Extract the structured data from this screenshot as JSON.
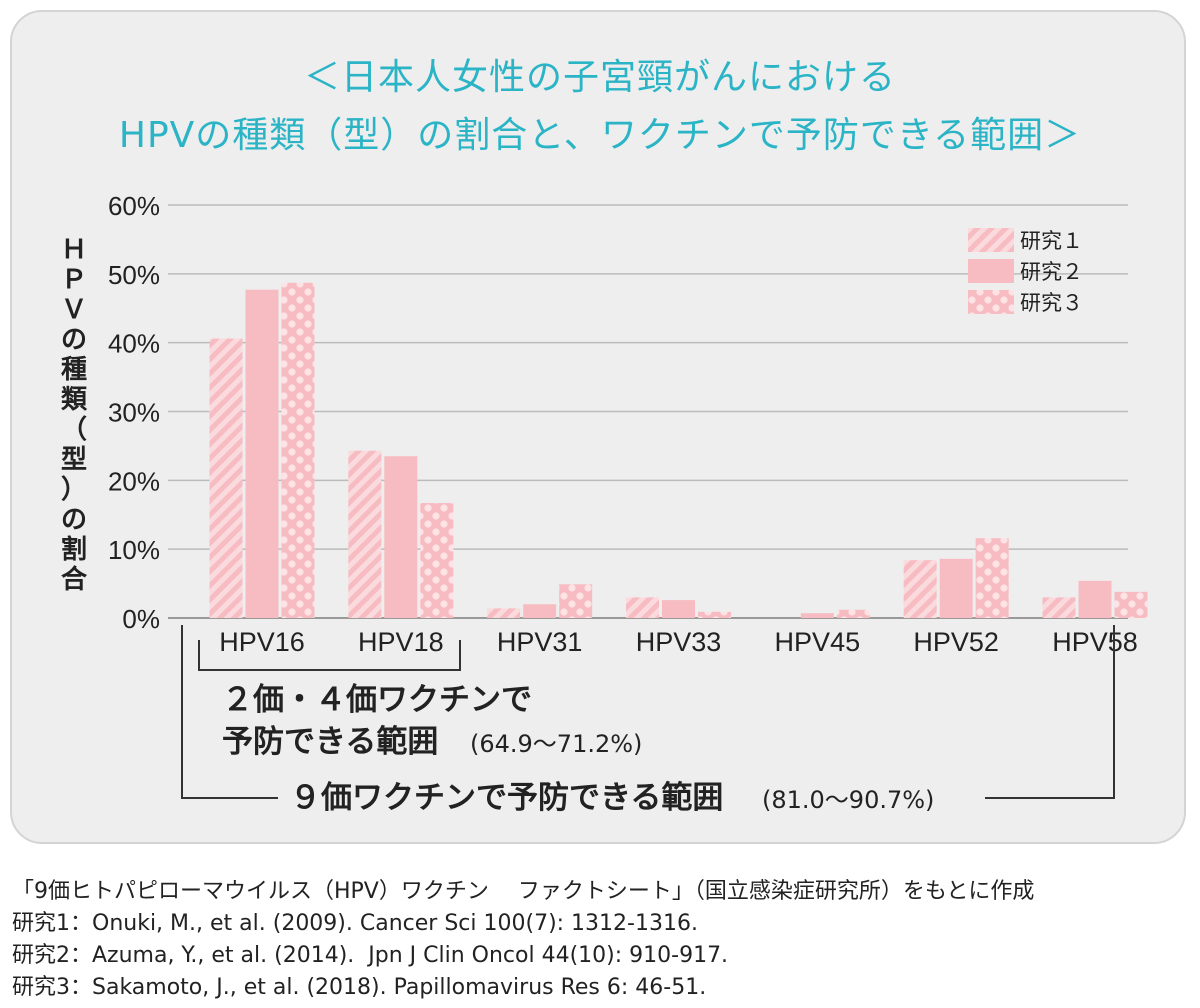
{
  "title_line1": "＜日本人女性の子宮頸がんにおける",
  "title_line2": "HPVの種類（型）の割合と、ワクチンで予防できる範囲＞",
  "colors": {
    "title": "#2ab4c6",
    "bar": "#f7bcc2",
    "bar_light": "#fbdadd",
    "panel": "#eeeeee"
  },
  "chart_data": {
    "type": "bar",
    "ylabel": "ＨＰＶの種類（型）の割合",
    "ylim": [
      0,
      60
    ],
    "y_ticks": [
      "0%",
      "10%",
      "20%",
      "30%",
      "40%",
      "50%",
      "60%"
    ],
    "y_tick_values": [
      0,
      10,
      20,
      30,
      40,
      50,
      60
    ],
    "categories": [
      "HPV16",
      "HPV18",
      "HPV31",
      "HPV33",
      "HPV45",
      "HPV52",
      "HPV58"
    ],
    "series": [
      {
        "name": "研究１",
        "pattern": "stripes",
        "values": [
          40.6,
          24.3,
          1.4,
          3.0,
          0.0,
          8.4,
          3.0
        ]
      },
      {
        "name": "研究２",
        "pattern": "solid",
        "values": [
          47.7,
          23.5,
          2.0,
          2.6,
          0.7,
          8.6,
          5.4
        ]
      },
      {
        "name": "研究３",
        "pattern": "dots",
        "values": [
          48.7,
          16.7,
          4.9,
          0.9,
          1.2,
          11.6,
          3.8
        ]
      }
    ],
    "legend_position": "top-right",
    "grid": true,
    "annotations": {
      "bracket1_line1": "２価・４価ワクチンで",
      "bracket1_line2": "予防できる範囲",
      "bracket1_range": "(64.9～71.2%)",
      "bracket2_label": "９価ワクチンで予防できる範囲",
      "bracket2_range": "(81.0～90.7%)"
    }
  },
  "sources": [
    "「9価ヒトパピローマウイルス（HPV）ワクチン　 ファクトシート」（国立感染症研究所）をもとに作成",
    "研究1：Onuki, M., et al. (2009). Cancer Sci 100(7): 1312-1316.",
    "研究2：Azuma, Y., et al. (2014).  Jpn J Clin Oncol 44(10): 910-917.",
    "研究3：Sakamoto, J., et al. (2018). Papillomavirus Res 6: 46-51."
  ]
}
